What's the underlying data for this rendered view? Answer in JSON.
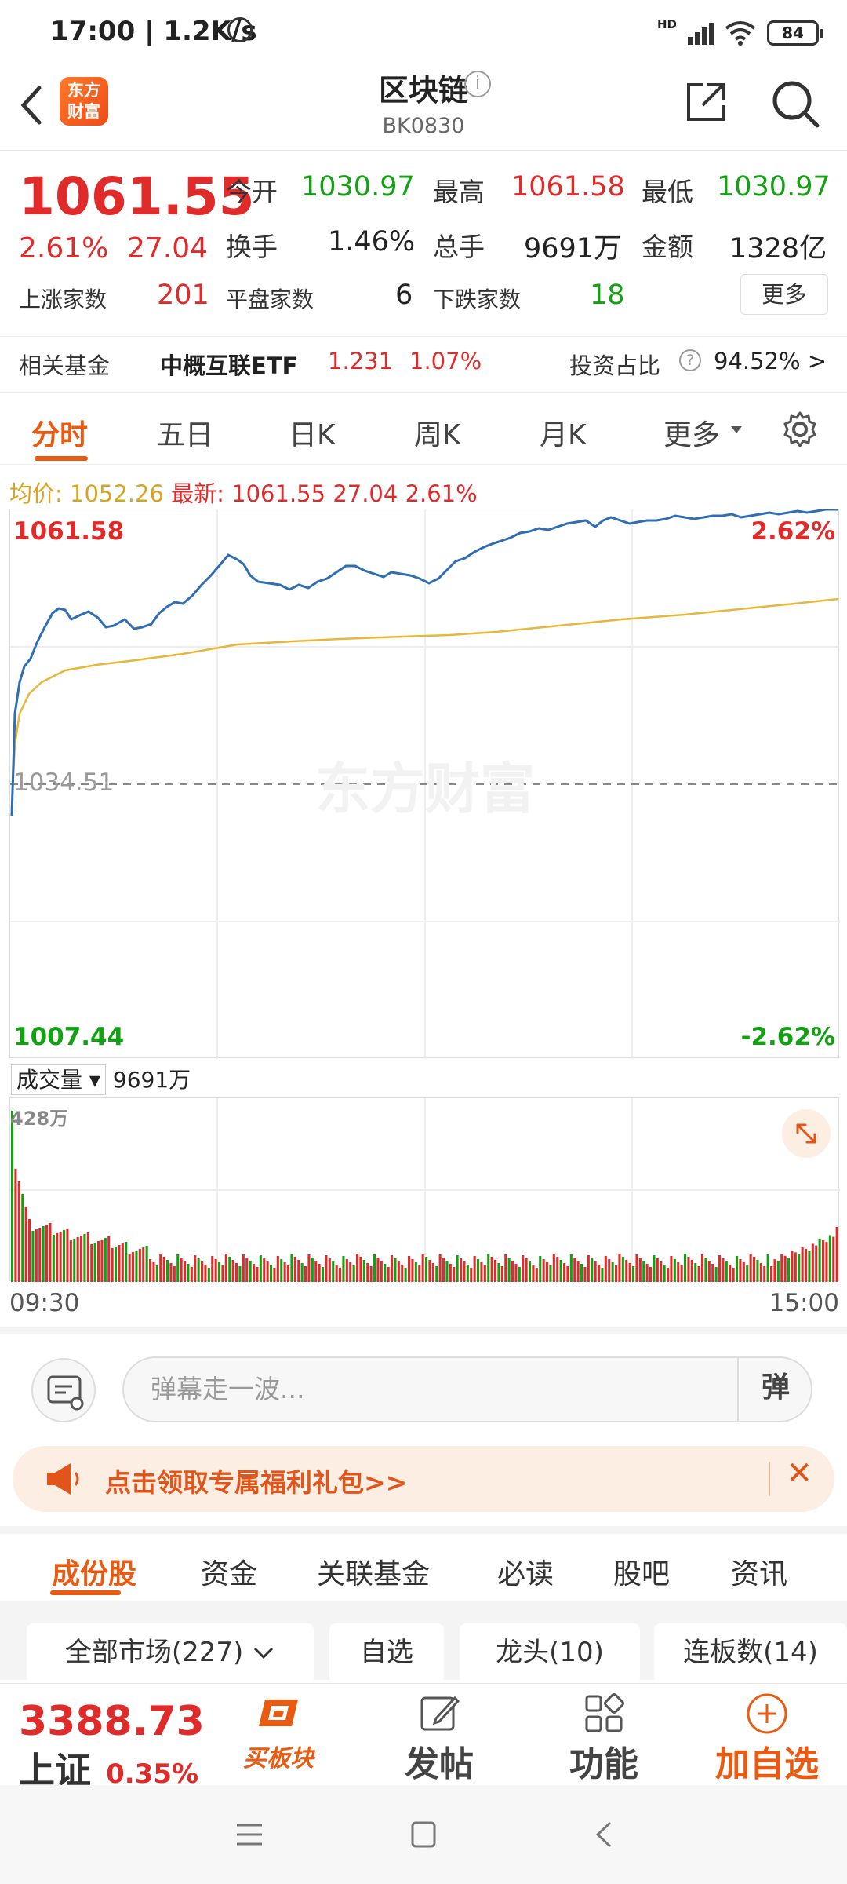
{
  "status_bar": {
    "time": "17:00 | 1.2K/s",
    "network": "HD",
    "battery": "84"
  },
  "header": {
    "logo_text_1": "东方",
    "logo_text_2": "财富",
    "title": "区块链",
    "code": "BK0830"
  },
  "quote": {
    "price": "1061.55",
    "change_pct": "2.61%",
    "change_amt": "27.04",
    "open_label": "今开",
    "open": "1030.97",
    "high_label": "最高",
    "high": "1061.58",
    "low_label": "最低",
    "low": "1030.97",
    "turnover_label": "换手",
    "turnover": "1.46%",
    "volume_label": "总手",
    "volume": "9691万",
    "amount_label": "金额",
    "amount": "1328亿",
    "up_label": "上涨家数",
    "up": "201",
    "flat_label": "平盘家数",
    "flat": "6",
    "down_label": "下跌家数",
    "down": "18",
    "more": "更多"
  },
  "fund": {
    "label": "相关基金",
    "name": "中概互联ETF",
    "price": "1.231",
    "pct": "1.07%",
    "ratio_label": "投资占比",
    "ratio": "94.52% >"
  },
  "chart_tabs": [
    "分时",
    "五日",
    "日K",
    "周K",
    "月K",
    "更多"
  ],
  "intraday": {
    "avg_label": "均价:",
    "avg": "1052.26",
    "latest_label": "最新:",
    "latest": "1061.55",
    "latest_chg": "27.04",
    "latest_pct": "2.61%",
    "y_top": "1061.58",
    "y_mid": "1034.51",
    "y_bottom": "1007.44",
    "pct_top": "2.62%",
    "pct_bottom": "-2.62%",
    "watermark": "东方财富",
    "volume_selector": "成交量",
    "volume_total": "9691万",
    "volume_max": "428万",
    "time_start": "09:30",
    "time_end": "15:00",
    "colors": {
      "price": "#2f6db5",
      "avg": "#e8b73a",
      "up": "#e02b2b",
      "down": "#13a013"
    }
  },
  "danmaku": {
    "placeholder": "弹幕走一波...",
    "toggle": "弹"
  },
  "promo": {
    "text": "点击领取专属福利礼包>>"
  },
  "sub_tabs": [
    "成份股",
    "资金",
    "关联基金",
    "必读",
    "股吧",
    "资讯"
  ],
  "filters": [
    "全部市场(227)",
    "自选",
    "龙头(10)",
    "连板数(14)"
  ],
  "bottom_bar": {
    "index_value": "3388.73",
    "index_name": "上证",
    "index_pct": "0.35%",
    "buy_block": "买板块",
    "post": "发帖",
    "functions": "功能",
    "add_watch": "加自选"
  }
}
